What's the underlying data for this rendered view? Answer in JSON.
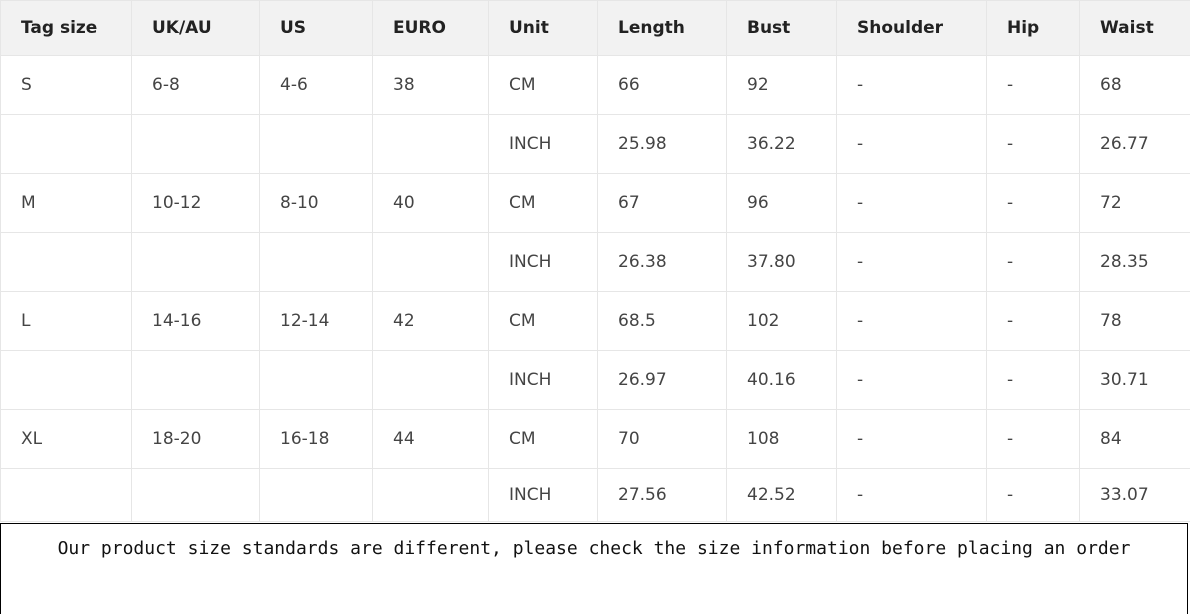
{
  "table": {
    "headers": [
      "Tag size",
      "UK/AU",
      "US",
      "EURO",
      "Unit",
      "Length",
      "Bust",
      "Shoulder",
      "Hip",
      "Waist"
    ],
    "rows": [
      [
        "S",
        "6-8",
        "4-6",
        "38",
        "CM",
        "66",
        "92",
        "-",
        "-",
        "68"
      ],
      [
        "",
        "",
        "",
        "",
        "INCH",
        "25.98",
        "36.22",
        "-",
        "-",
        "26.77"
      ],
      [
        "M",
        "10-12",
        "8-10",
        "40",
        "CM",
        "67",
        "96",
        "-",
        "-",
        "72"
      ],
      [
        "",
        "",
        "",
        "",
        "INCH",
        "26.38",
        "37.80",
        "-",
        "-",
        "28.35"
      ],
      [
        "L",
        "14-16",
        "12-14",
        "42",
        "CM",
        "68.5",
        "102",
        "-",
        "-",
        "78"
      ],
      [
        "",
        "",
        "",
        "",
        "INCH",
        "26.97",
        "40.16",
        "-",
        "-",
        "30.71"
      ],
      [
        "XL",
        "18-20",
        "16-18",
        "44",
        "CM",
        "70",
        "108",
        "-",
        "-",
        "84"
      ],
      [
        "",
        "",
        "",
        "",
        "INCH",
        "27.56",
        "42.52",
        "-",
        "-",
        "33.07"
      ]
    ]
  },
  "note": "Our product size standards are different, please check the size information before placing an order"
}
